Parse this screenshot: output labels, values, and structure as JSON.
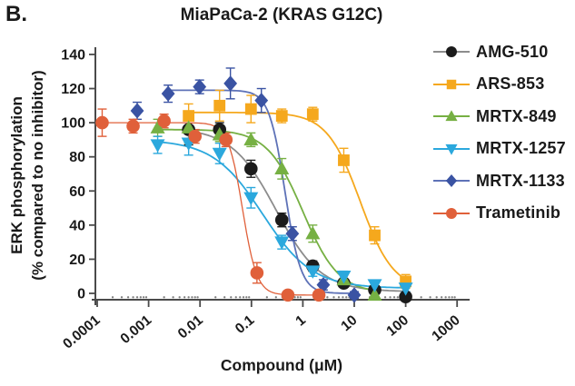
{
  "panel_label": "B.",
  "chart_data": {
    "type": "line",
    "title": "MiaPaCa-2 (KRAS G12C)",
    "xlabel": "Compound (μM)",
    "ylabel_line1": "ERK phosphorylation",
    "ylabel_line2": "(% compared to no inhibitor)",
    "x_scale": "log",
    "xlim": [
      0.0001,
      1000
    ],
    "ylim": [
      0,
      140
    ],
    "y_ticks": [
      0,
      20,
      40,
      60,
      80,
      100,
      120,
      140
    ],
    "x_tick_labels": [
      "0.0001",
      "0.001",
      "0.01",
      "0.1",
      "1",
      "10",
      "100",
      "1000"
    ],
    "legend_position": "right",
    "grid": false,
    "series": [
      {
        "name": "AMG-510",
        "marker": "circle",
        "color": "#1b1b1b",
        "line_color": "#8c8c8c",
        "x": [
          0.006,
          0.024,
          0.098,
          0.39,
          1.56,
          6.25,
          25,
          100
        ],
        "y": [
          96,
          96,
          73,
          43,
          16,
          6,
          2,
          -2
        ],
        "err": [
          9,
          4,
          5,
          4,
          3,
          2,
          2,
          2
        ],
        "fit": {
          "top": 97,
          "bottom": 1,
          "ic50": 0.3,
          "hill": 1.0
        }
      },
      {
        "name": "ARS-853",
        "marker": "square",
        "color": "#f5a81d",
        "line_color": "#f5a81d",
        "x": [
          0.006,
          0.024,
          0.098,
          0.39,
          1.56,
          6.25,
          25,
          100
        ],
        "y": [
          104,
          110,
          108,
          104,
          105,
          78,
          34,
          7
        ],
        "err": [
          7,
          9,
          8,
          4,
          4,
          7,
          5,
          4
        ],
        "fit": {
          "top": 106,
          "bottom": 2,
          "ic50": 13,
          "hill": 1.35
        }
      },
      {
        "name": "MRTX-849",
        "marker": "triangle-up",
        "color": "#76b043",
        "line_color": "#76b043",
        "x": [
          0.0015,
          0.006,
          0.024,
          0.098,
          0.39,
          1.56,
          6.25,
          25
        ],
        "y": [
          97,
          97,
          93,
          90,
          73,
          35,
          8,
          -1
        ],
        "err": [
          5,
          9,
          4,
          4,
          6,
          5,
          3,
          2
        ],
        "fit": {
          "top": 96,
          "bottom": 0,
          "ic50": 1.0,
          "hill": 1.25
        }
      },
      {
        "name": "MRTX-1257",
        "marker": "triangle-down",
        "color": "#2ba8dd",
        "line_color": "#2ba8dd",
        "x": [
          0.0015,
          0.006,
          0.024,
          0.098,
          0.39,
          1.56,
          6.25,
          25,
          100
        ],
        "y": [
          87,
          88,
          82,
          56,
          30,
          13,
          10,
          5,
          3
        ],
        "err": [
          5,
          7,
          6,
          6,
          4,
          3,
          3,
          2,
          2
        ],
        "fit": {
          "top": 90,
          "bottom": 3,
          "ic50": 0.165,
          "hill": 0.9
        }
      },
      {
        "name": "MRTX-1133",
        "marker": "diamond",
        "color": "#3a53a3",
        "line_color": "#5e72b7",
        "x": [
          0.0006,
          0.0024,
          0.0098,
          0.039,
          0.156,
          0.625,
          2.5,
          10
        ],
        "y": [
          107,
          117,
          121,
          123,
          113,
          35,
          5,
          -1
        ],
        "err": [
          5,
          5,
          4,
          9,
          7,
          4,
          3,
          2
        ],
        "fit": {
          "top": 119,
          "bottom": 0,
          "ic50": 0.45,
          "hill": 2.8
        },
        "fit_from": 0.0024
      },
      {
        "name": "Trametinib",
        "marker": "circle",
        "color": "#e0603a",
        "line_color": "#e0603a",
        "line_width": 1.3,
        "x": [
          0.000125,
          0.0005,
          0.002,
          0.008,
          0.032,
          0.128,
          0.512,
          2.05
        ],
        "y": [
          100,
          98,
          101,
          92,
          90,
          12,
          -1,
          -1
        ],
        "err": [
          8,
          4,
          4,
          4,
          4,
          6,
          2,
          2
        ],
        "fit": {
          "top": 100,
          "bottom": -1,
          "ic50": 0.067,
          "hill": 3.1
        }
      }
    ]
  }
}
